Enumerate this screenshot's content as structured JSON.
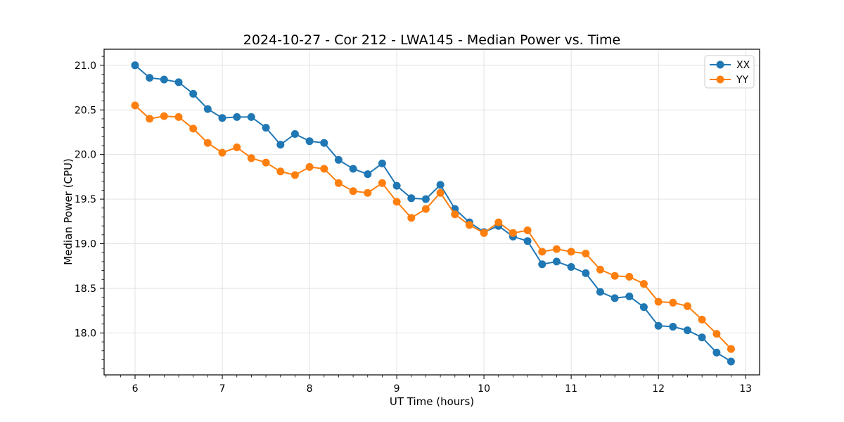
{
  "chart_data": {
    "type": "line",
    "title": "2024-10-27 - Cor 212 - LWA145 - Median Power vs. Time",
    "xlabel": "UT Time (hours)",
    "ylabel": "Median Power (CPU)",
    "x": [
      6.0,
      6.167,
      6.333,
      6.5,
      6.667,
      6.833,
      7.0,
      7.167,
      7.333,
      7.5,
      7.667,
      7.833,
      8.0,
      8.167,
      8.333,
      8.5,
      8.667,
      8.833,
      9.0,
      9.167,
      9.333,
      9.5,
      9.667,
      9.833,
      10.0,
      10.167,
      10.333,
      10.5,
      10.667,
      10.833,
      11.0,
      11.167,
      11.333,
      11.5,
      11.667,
      11.833,
      12.0,
      12.167,
      12.333,
      12.5,
      12.667,
      12.833
    ],
    "series": [
      {
        "name": "XX",
        "color": "#1f77b4",
        "values": [
          21.0,
          20.86,
          20.84,
          20.81,
          20.68,
          20.51,
          20.41,
          20.42,
          20.42,
          20.3,
          20.11,
          20.23,
          20.15,
          20.13,
          19.94,
          19.84,
          19.78,
          19.9,
          19.65,
          19.51,
          19.5,
          19.66,
          19.39,
          19.24,
          19.13,
          19.2,
          19.08,
          19.03,
          18.77,
          18.8,
          18.74,
          18.67,
          18.46,
          18.39,
          18.41,
          18.29,
          18.08,
          18.07,
          18.03,
          17.95,
          17.78,
          17.68
        ]
      },
      {
        "name": "YY",
        "color": "#ff7f0e",
        "values": [
          20.55,
          20.4,
          20.43,
          20.42,
          20.29,
          20.13,
          20.02,
          20.08,
          19.96,
          19.91,
          19.81,
          19.77,
          19.86,
          19.84,
          19.68,
          19.59,
          19.57,
          19.68,
          19.47,
          19.29,
          19.39,
          19.57,
          19.33,
          19.21,
          19.12,
          19.24,
          19.12,
          19.15,
          18.91,
          18.94,
          18.91,
          18.89,
          18.71,
          18.64,
          18.63,
          18.55,
          18.35,
          18.34,
          18.3,
          18.15,
          17.99,
          17.82
        ]
      }
    ],
    "xlim": [
      5.645,
      13.16
    ],
    "ylim": [
      17.53,
      21.18
    ],
    "xticks": [
      6,
      7,
      8,
      9,
      10,
      11,
      12,
      13
    ],
    "xtick_labels": [
      "6",
      "7",
      "8",
      "9",
      "10",
      "11",
      "12",
      "13"
    ],
    "yticks": [
      18.0,
      18.5,
      19.0,
      19.5,
      20.0,
      20.5,
      21.0
    ],
    "ytick_labels": [
      "18.0",
      "18.5",
      "19.0",
      "19.5",
      "20.0",
      "20.5",
      "21.0"
    ],
    "x_minor_step": 0.16667,
    "y_minor_step": 0.1,
    "grid": true,
    "grid_color": "#e2e2e2",
    "marker": "circle",
    "legend": {
      "position": "upper right",
      "entries": [
        "XX",
        "YY"
      ]
    }
  }
}
